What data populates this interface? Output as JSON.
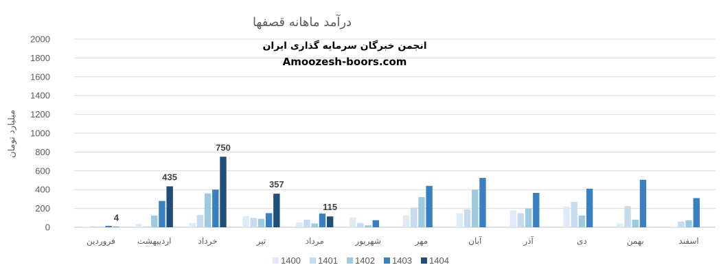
{
  "chart_data": {
    "type": "bar",
    "title": "درآمد ماهانه قصفها",
    "watermark": {
      "line1": "انجمن خبرگان سرمایه گذاری ایران",
      "line2": "Amoozesh-boors.com"
    },
    "xlabel": "",
    "ylabel": "میلیارد تومان",
    "ylim": [
      0,
      2000
    ],
    "yticks": [
      0,
      200,
      400,
      600,
      800,
      1000,
      1200,
      1400,
      1600,
      1800,
      2000
    ],
    "grid": true,
    "legend_position": "bottom",
    "categories": [
      "فروردین",
      "اردیبهشت",
      "خرداد",
      "تیر",
      "مرداد",
      "شهریور",
      "مهر",
      "آبان",
      "آذر",
      "دی",
      "بهمن",
      "اسفند"
    ],
    "series": [
      {
        "name": "1400",
        "color": "#deebf7",
        "values": [
          5,
          35,
          45,
          120,
          50,
          105,
          125,
          150,
          180,
          220,
          40,
          5
        ]
      },
      {
        "name": "1401",
        "color": "#c6dbef",
        "values": [
          10,
          10,
          130,
          100,
          80,
          45,
          210,
          190,
          150,
          270,
          225,
          60
        ]
      },
      {
        "name": "1402",
        "color": "#9ecae1",
        "values": [
          5,
          125,
          360,
          90,
          40,
          20,
          320,
          400,
          200,
          125,
          80,
          75
        ]
      },
      {
        "name": "1403",
        "color": "#3a7fc1",
        "values": [
          15,
          280,
          400,
          150,
          145,
          75,
          440,
          525,
          365,
          410,
          505,
          310
        ]
      },
      {
        "name": "1404",
        "color": "#1f4e79",
        "values": [
          4,
          435,
          750,
          357,
          115,
          null,
          null,
          null,
          null,
          null,
          null,
          null
        ]
      }
    ],
    "data_labels": [
      {
        "category_index": 0,
        "series_index": 4,
        "text": "4"
      },
      {
        "category_index": 1,
        "series_index": 4,
        "text": "435"
      },
      {
        "category_index": 2,
        "series_index": 4,
        "text": "750"
      },
      {
        "category_index": 3,
        "series_index": 4,
        "text": "357"
      },
      {
        "category_index": 4,
        "series_index": 4,
        "text": "115"
      }
    ]
  }
}
